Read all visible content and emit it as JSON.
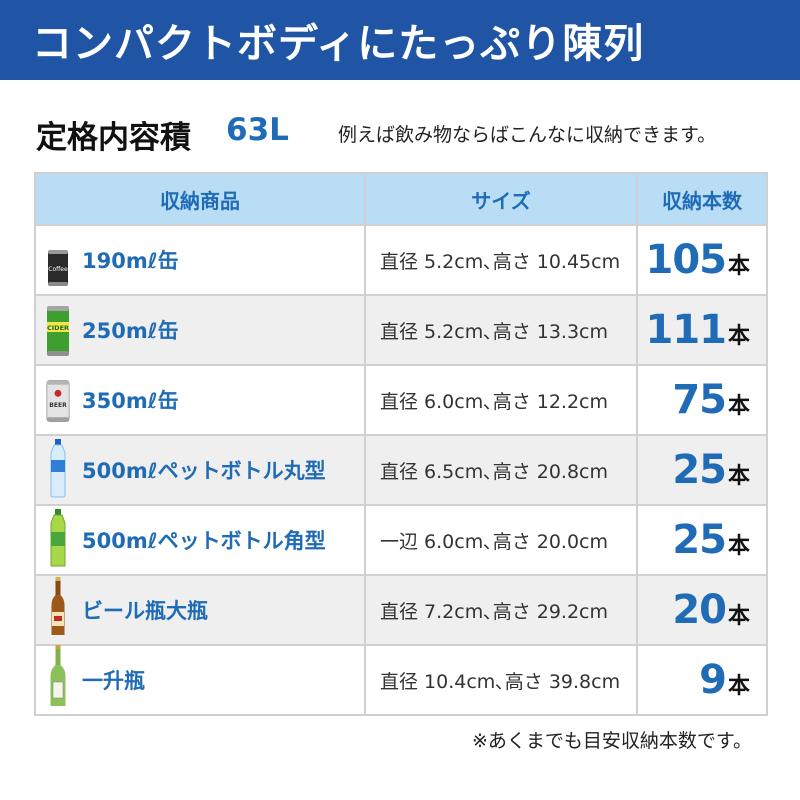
{
  "banner": {
    "title": "コンパクトボディにたっぷり陳列"
  },
  "spec": {
    "label": "定格内容積",
    "value": "63L",
    "note": "例えば飲み物ならばこんなに収納できます。"
  },
  "table": {
    "headers": [
      "収納商品",
      "サイズ",
      "収納本数"
    ],
    "rows": [
      {
        "icon": "coffee-can-icon",
        "name": "190mℓ缶",
        "size": "直径 5.2cm､高さ 10.45cm",
        "count": "105",
        "unit": "本"
      },
      {
        "icon": "cider-can-icon",
        "name": "250mℓ缶",
        "size": "直径 5.2cm､高さ 13.3cm",
        "count": "111",
        "unit": "本"
      },
      {
        "icon": "beer-can-icon",
        "name": "350mℓ缶",
        "size": "直径 6.0cm､高さ 12.2cm",
        "count": "75",
        "unit": "本"
      },
      {
        "icon": "round-pet-bottle-icon",
        "name": "500mℓペットボトル丸型",
        "size": "直径 6.5cm､高さ 20.8cm",
        "count": "25",
        "unit": "本"
      },
      {
        "icon": "square-pet-bottle-icon",
        "name": "500mℓペットボトル角型",
        "size": "一辺 6.0cm､高さ 20.0cm",
        "count": "25",
        "unit": "本"
      },
      {
        "icon": "beer-bottle-icon",
        "name": "ビール瓶大瓶",
        "size": "直径 7.2cm､高さ 29.2cm",
        "count": "20",
        "unit": "本"
      },
      {
        "icon": "sake-bottle-icon",
        "name": "一升瓶",
        "size": "直径 10.4cm､高さ 39.8cm",
        "count": "9",
        "unit": "本"
      }
    ]
  },
  "footnote": "※あくまでも目安収納本数です。",
  "colors": {
    "banner": "#1f55a4",
    "accent": "#1f6bb5",
    "header_bg": "#b8ddf5",
    "stripe": "#efefef"
  },
  "icon_labels": {
    "coffee": "Coffee",
    "cider": "CIDER",
    "beer": "BEER"
  }
}
